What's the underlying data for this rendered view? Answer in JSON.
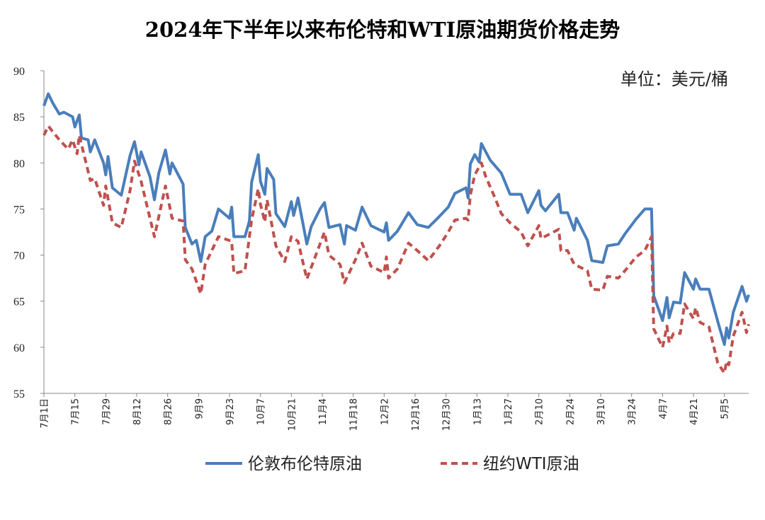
{
  "chart_data": {
    "type": "line",
    "title": "2024年下半年以来布伦特和WTI原油期货价格走势",
    "unit_label": "单位：美元/桶",
    "ylim": [
      55,
      90
    ],
    "yticks": [
      55,
      60,
      65,
      70,
      75,
      80,
      85,
      90
    ],
    "xlim": [
      "2024-07-01",
      "2025-05-16"
    ],
    "xticks": [
      {
        "date": "2024-07-01",
        "label": "7月1日"
      },
      {
        "date": "2024-07-15",
        "label": "7月15"
      },
      {
        "date": "2024-07-29",
        "label": "7月29"
      },
      {
        "date": "2024-08-12",
        "label": "8月12"
      },
      {
        "date": "2024-08-26",
        "label": "8月26"
      },
      {
        "date": "2024-09-09",
        "label": "9月9"
      },
      {
        "date": "2024-09-23",
        "label": "9月23"
      },
      {
        "date": "2024-10-07",
        "label": "10月7"
      },
      {
        "date": "2024-10-21",
        "label": "10月21"
      },
      {
        "date": "2024-11-04",
        "label": "11月4"
      },
      {
        "date": "2024-11-18",
        "label": "11月18"
      },
      {
        "date": "2024-12-02",
        "label": "12月2"
      },
      {
        "date": "2024-12-16",
        "label": "12月16"
      },
      {
        "date": "2024-12-30",
        "label": "12月30"
      },
      {
        "date": "2025-01-13",
        "label": "1月13"
      },
      {
        "date": "2025-01-27",
        "label": "1月27"
      },
      {
        "date": "2025-02-10",
        "label": "2月10"
      },
      {
        "date": "2025-02-24",
        "label": "2月24"
      },
      {
        "date": "2025-03-10",
        "label": "3月10"
      },
      {
        "date": "2025-03-24",
        "label": "3月24"
      },
      {
        "date": "2025-04-07",
        "label": "4月7"
      },
      {
        "date": "2025-04-21",
        "label": "4月21"
      },
      {
        "date": "2025-05-05",
        "label": "5月5"
      }
    ],
    "grid": false,
    "legend_position": "bottom",
    "series": [
      {
        "name": "伦敦布伦特原油",
        "color": "#4a7ebb",
        "style": "solid",
        "points": [
          [
            "2024-07-01",
            86.2
          ],
          [
            "2024-07-03",
            87.5
          ],
          [
            "2024-07-05",
            86.5
          ],
          [
            "2024-07-08",
            85.3
          ],
          [
            "2024-07-10",
            85.5
          ],
          [
            "2024-07-14",
            85.0
          ],
          [
            "2024-07-15",
            83.9
          ],
          [
            "2024-07-17",
            85.2
          ],
          [
            "2024-07-18",
            82.7
          ],
          [
            "2024-07-21",
            82.5
          ],
          [
            "2024-07-22",
            81.2
          ],
          [
            "2024-07-24",
            82.5
          ],
          [
            "2024-07-28",
            80.0
          ],
          [
            "2024-07-29",
            78.7
          ],
          [
            "2024-07-30",
            80.7
          ],
          [
            "2024-08-01",
            77.3
          ],
          [
            "2024-08-05",
            76.5
          ],
          [
            "2024-08-09",
            80.8
          ],
          [
            "2024-08-11",
            82.3
          ],
          [
            "2024-08-13",
            79.8
          ],
          [
            "2024-08-14",
            81.2
          ],
          [
            "2024-08-18",
            78.5
          ],
          [
            "2024-08-20",
            76.0
          ],
          [
            "2024-08-22",
            78.9
          ],
          [
            "2024-08-25",
            81.4
          ],
          [
            "2024-08-27",
            78.8
          ],
          [
            "2024-08-28",
            80.0
          ],
          [
            "2024-09-02",
            77.7
          ],
          [
            "2024-09-03",
            73.0
          ],
          [
            "2024-09-06",
            71.2
          ],
          [
            "2024-09-08",
            71.6
          ],
          [
            "2024-09-10",
            69.3
          ],
          [
            "2024-09-12",
            72.0
          ],
          [
            "2024-09-15",
            72.6
          ],
          [
            "2024-09-18",
            75.0
          ],
          [
            "2024-09-23",
            74.0
          ],
          [
            "2024-09-24",
            75.2
          ],
          [
            "2024-09-25",
            72.0
          ],
          [
            "2024-09-30",
            72.0
          ],
          [
            "2024-10-02",
            73.7
          ],
          [
            "2024-10-03",
            77.9
          ],
          [
            "2024-10-06",
            80.9
          ],
          [
            "2024-10-07",
            78.0
          ],
          [
            "2024-10-09",
            76.6
          ],
          [
            "2024-10-10",
            79.4
          ],
          [
            "2024-10-13",
            78.2
          ],
          [
            "2024-10-14",
            74.5
          ],
          [
            "2024-10-18",
            73.1
          ],
          [
            "2024-10-21",
            75.8
          ],
          [
            "2024-10-22",
            74.3
          ],
          [
            "2024-10-24",
            76.2
          ],
          [
            "2024-10-28",
            71.2
          ],
          [
            "2024-10-30",
            73.1
          ],
          [
            "2024-11-03",
            75.0
          ],
          [
            "2024-11-05",
            75.7
          ],
          [
            "2024-11-07",
            73.0
          ],
          [
            "2024-11-12",
            73.3
          ],
          [
            "2024-11-14",
            71.2
          ],
          [
            "2024-11-15",
            73.2
          ],
          [
            "2024-11-19",
            72.7
          ],
          [
            "2024-11-22",
            75.2
          ],
          [
            "2024-11-26",
            73.2
          ],
          [
            "2024-12-02",
            72.5
          ],
          [
            "2024-12-03",
            73.5
          ],
          [
            "2024-12-04",
            71.6
          ],
          [
            "2024-12-08",
            72.6
          ],
          [
            "2024-12-13",
            74.6
          ],
          [
            "2024-12-17",
            73.3
          ],
          [
            "2024-12-22",
            73.0
          ],
          [
            "2024-12-27",
            74.2
          ],
          [
            "2024-12-31",
            75.2
          ],
          [
            "2025-01-03",
            76.7
          ],
          [
            "2025-01-08",
            77.3
          ],
          [
            "2025-01-09",
            76.2
          ],
          [
            "2025-01-10",
            79.9
          ],
          [
            "2025-01-12",
            80.9
          ],
          [
            "2025-01-14",
            80.1
          ],
          [
            "2025-01-15",
            82.1
          ],
          [
            "2025-01-19",
            80.3
          ],
          [
            "2025-01-24",
            78.9
          ],
          [
            "2025-01-28",
            76.6
          ],
          [
            "2025-02-02",
            76.6
          ],
          [
            "2025-02-05",
            74.6
          ],
          [
            "2025-02-10",
            77.0
          ],
          [
            "2025-02-11",
            75.4
          ],
          [
            "2025-02-13",
            74.8
          ],
          [
            "2025-02-19",
            76.6
          ],
          [
            "2025-02-20",
            74.6
          ],
          [
            "2025-02-23",
            74.6
          ],
          [
            "2025-02-26",
            72.7
          ],
          [
            "2025-02-27",
            74.0
          ],
          [
            "2025-03-04",
            71.6
          ],
          [
            "2025-03-06",
            69.4
          ],
          [
            "2025-03-11",
            69.2
          ],
          [
            "2025-03-13",
            71.0
          ],
          [
            "2025-03-18",
            71.2
          ],
          [
            "2025-03-21",
            72.3
          ],
          [
            "2025-03-26",
            73.9
          ],
          [
            "2025-03-30",
            75.0
          ],
          [
            "2025-04-02",
            75.0
          ],
          [
            "2025-04-03",
            65.6
          ],
          [
            "2025-04-07",
            62.9
          ],
          [
            "2025-04-09",
            65.4
          ],
          [
            "2025-04-10",
            63.2
          ],
          [
            "2025-04-12",
            64.9
          ],
          [
            "2025-04-15",
            64.8
          ],
          [
            "2025-04-17",
            68.1
          ],
          [
            "2025-04-21",
            66.3
          ],
          [
            "2025-04-22",
            67.4
          ],
          [
            "2025-04-24",
            66.3
          ],
          [
            "2025-04-28",
            66.3
          ],
          [
            "2025-05-02",
            62.8
          ],
          [
            "2025-05-05",
            60.3
          ],
          [
            "2025-05-06",
            62.1
          ],
          [
            "2025-05-07",
            61.0
          ],
          [
            "2025-05-09",
            63.8
          ],
          [
            "2025-05-13",
            66.6
          ],
          [
            "2025-05-15",
            65.0
          ],
          [
            "2025-05-16",
            65.7
          ]
        ]
      },
      {
        "name": "纽约WTI原油",
        "color": "#c0504d",
        "style": "dashed",
        "points": [
          [
            "2024-07-01",
            83.0
          ],
          [
            "2024-07-03",
            84.0
          ],
          [
            "2024-07-08",
            82.5
          ],
          [
            "2024-07-12",
            81.5
          ],
          [
            "2024-07-14",
            82.5
          ],
          [
            "2024-07-16",
            81.0
          ],
          [
            "2024-07-17",
            83.0
          ],
          [
            "2024-07-22",
            78.1
          ],
          [
            "2024-07-24",
            78.3
          ],
          [
            "2024-07-28",
            75.4
          ],
          [
            "2024-07-29",
            77.5
          ],
          [
            "2024-08-01",
            73.5
          ],
          [
            "2024-08-05",
            73.0
          ],
          [
            "2024-08-09",
            77.0
          ],
          [
            "2024-08-11",
            80.2
          ],
          [
            "2024-08-14",
            78.0
          ],
          [
            "2024-08-20",
            72.0
          ],
          [
            "2024-08-25",
            77.5
          ],
          [
            "2024-08-28",
            74.0
          ],
          [
            "2024-09-02",
            73.7
          ],
          [
            "2024-09-03",
            69.5
          ],
          [
            "2024-09-06",
            68.5
          ],
          [
            "2024-09-10",
            65.8
          ],
          [
            "2024-09-12",
            69.0
          ],
          [
            "2024-09-18",
            72.0
          ],
          [
            "2024-09-24",
            71.5
          ],
          [
            "2024-09-25",
            68.0
          ],
          [
            "2024-09-30",
            68.3
          ],
          [
            "2024-10-03",
            73.8
          ],
          [
            "2024-10-06",
            77.2
          ],
          [
            "2024-10-07",
            75.5
          ],
          [
            "2024-10-09",
            73.6
          ],
          [
            "2024-10-10",
            76.0
          ],
          [
            "2024-10-14",
            71.0
          ],
          [
            "2024-10-18",
            69.3
          ],
          [
            "2024-10-21",
            72.0
          ],
          [
            "2024-10-24",
            71.5
          ],
          [
            "2024-10-28",
            67.4
          ],
          [
            "2024-11-05",
            72.5
          ],
          [
            "2024-11-07",
            70.0
          ],
          [
            "2024-11-12",
            69.0
          ],
          [
            "2024-11-14",
            67.0
          ],
          [
            "2024-11-19",
            69.5
          ],
          [
            "2024-11-22",
            71.3
          ],
          [
            "2024-11-26",
            68.8
          ],
          [
            "2024-12-02",
            68.1
          ],
          [
            "2024-12-03",
            69.8
          ],
          [
            "2024-12-04",
            67.5
          ],
          [
            "2024-12-08",
            68.5
          ],
          [
            "2024-12-13",
            71.3
          ],
          [
            "2024-12-17",
            70.5
          ],
          [
            "2024-12-22",
            69.4
          ],
          [
            "2024-12-27",
            71.0
          ],
          [
            "2024-12-31",
            72.5
          ],
          [
            "2025-01-03",
            73.8
          ],
          [
            "2025-01-08",
            74.0
          ],
          [
            "2025-01-09",
            73.8
          ],
          [
            "2025-01-10",
            76.5
          ],
          [
            "2025-01-12",
            78.7
          ],
          [
            "2025-01-15",
            80.0
          ],
          [
            "2025-01-17",
            78.5
          ],
          [
            "2025-01-21",
            76.3
          ],
          [
            "2025-01-24",
            74.5
          ],
          [
            "2025-01-28",
            73.5
          ],
          [
            "2025-02-02",
            72.5
          ],
          [
            "2025-02-05",
            71.0
          ],
          [
            "2025-02-10",
            73.2
          ],
          [
            "2025-02-11",
            71.8
          ],
          [
            "2025-02-19",
            72.8
          ],
          [
            "2025-02-20",
            70.5
          ],
          [
            "2025-02-23",
            70.5
          ],
          [
            "2025-02-26",
            69.0
          ],
          [
            "2025-03-04",
            68.3
          ],
          [
            "2025-03-06",
            66.3
          ],
          [
            "2025-03-11",
            66.2
          ],
          [
            "2025-03-13",
            67.7
          ],
          [
            "2025-03-18",
            67.5
          ],
          [
            "2025-03-21",
            68.3
          ],
          [
            "2025-03-26",
            69.8
          ],
          [
            "2025-03-30",
            70.5
          ],
          [
            "2025-04-02",
            72.0
          ],
          [
            "2025-04-03",
            62.0
          ],
          [
            "2025-04-07",
            60.0
          ],
          [
            "2025-04-09",
            62.3
          ],
          [
            "2025-04-10",
            60.5
          ],
          [
            "2025-04-12",
            61.5
          ],
          [
            "2025-04-15",
            61.5
          ],
          [
            "2025-04-17",
            64.7
          ],
          [
            "2025-04-21",
            63.1
          ],
          [
            "2025-04-22",
            64.3
          ],
          [
            "2025-04-24",
            62.7
          ],
          [
            "2025-04-28",
            62.2
          ],
          [
            "2025-05-02",
            58.3
          ],
          [
            "2025-05-05",
            57.2
          ],
          [
            "2025-05-06",
            58.5
          ],
          [
            "2025-05-07",
            58.1
          ],
          [
            "2025-05-09",
            61.2
          ],
          [
            "2025-05-13",
            63.8
          ],
          [
            "2025-05-15",
            61.6
          ],
          [
            "2025-05-16",
            62.5
          ]
        ]
      }
    ]
  }
}
